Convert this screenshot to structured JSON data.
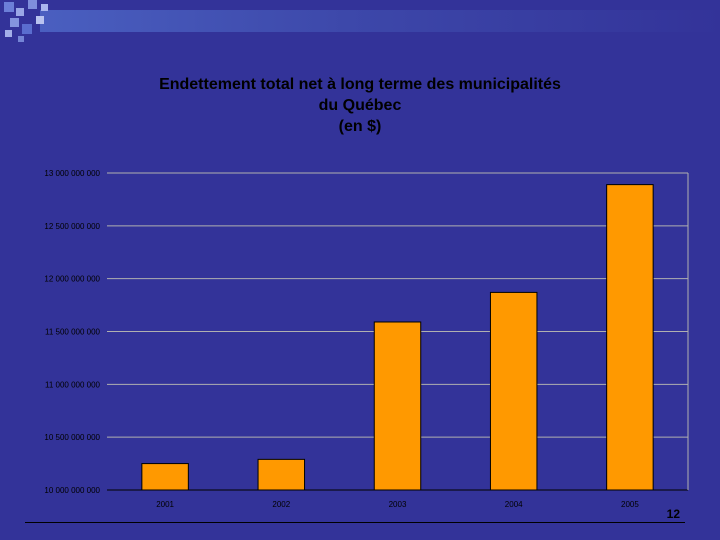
{
  "colors": {
    "background": "#333399",
    "bar": "#FF9900",
    "bar_outline": "#000000",
    "text": "#000000"
  },
  "page_number": "12",
  "chart_data": {
    "type": "bar",
    "title_lines": [
      "Endettement total net à long terme des municipalités",
      "du Québec",
      "(en $)"
    ],
    "categories": [
      "2001",
      "2002",
      "2003",
      "2004",
      "2005"
    ],
    "values": [
      10250000000,
      10290000000,
      11590000000,
      11870000000,
      12890000000
    ],
    "ylim": [
      10000000000,
      13000000000
    ],
    "yticks": [
      10000000000,
      10500000000,
      11000000000,
      11500000000,
      12000000000,
      12500000000,
      13000000000
    ],
    "ytick_labels": [
      "10 000 000 000",
      "10 500 000 000",
      "11 000 000 000",
      "11 500 000 000",
      "12 000 000 000",
      "12 500 000 000",
      "13 000 000 000"
    ],
    "xlabel": "",
    "ylabel": "",
    "grid": true,
    "legend": "none"
  }
}
